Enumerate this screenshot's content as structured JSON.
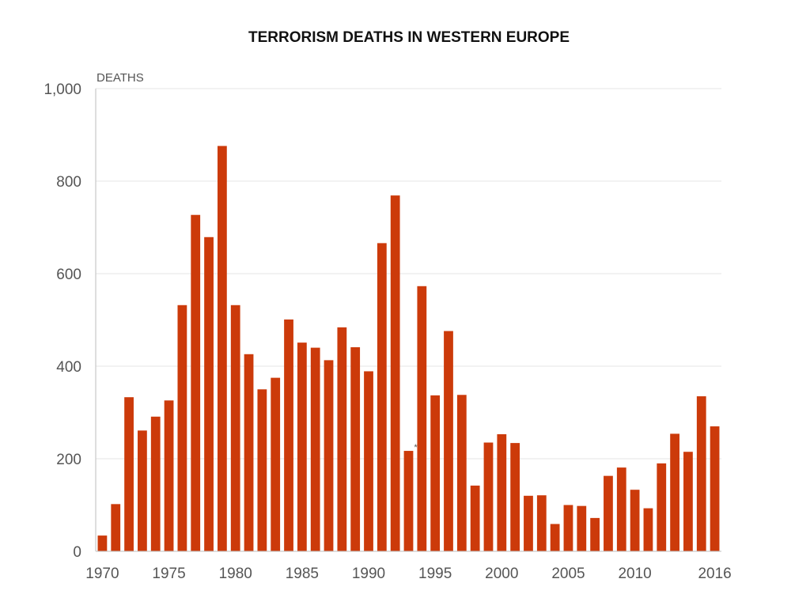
{
  "chart_data": {
    "type": "bar",
    "title": "TERRORISM DEATHS IN WESTERN EUROPE",
    "xlabel": "",
    "ylabel": "DEATHS",
    "ylim": [
      0,
      1000
    ],
    "yticks": [
      0,
      200,
      400,
      600,
      800,
      1000
    ],
    "ytick_labels": [
      "0",
      "200",
      "400",
      "600",
      "800",
      "1,000"
    ],
    "xtick_labels": [
      "1970",
      "1975",
      "1980",
      "1985",
      "1990",
      "1995",
      "2000",
      "2005",
      "2010",
      "2016"
    ],
    "grid": true,
    "bar_color": "#cc3a0a",
    "categories": [
      1970,
      1971,
      1972,
      1973,
      1974,
      1975,
      1976,
      1977,
      1978,
      1979,
      1980,
      1981,
      1982,
      1983,
      1984,
      1985,
      1986,
      1987,
      1988,
      1989,
      1990,
      1991,
      1992,
      1993,
      1994,
      1995,
      1996,
      1997,
      1998,
      1999,
      2000,
      2001,
      2002,
      2003,
      2004,
      2005,
      2006,
      2007,
      2008,
      2009,
      2010,
      2011,
      2012,
      2013,
      2014,
      2015,
      2016
    ],
    "values": [
      34,
      102,
      333,
      261,
      291,
      326,
      532,
      727,
      679,
      876,
      532,
      426,
      350,
      375,
      501,
      451,
      440,
      413,
      484,
      441,
      389,
      666,
      769,
      217,
      573,
      337,
      476,
      338,
      142,
      235,
      253,
      234,
      120,
      121,
      59,
      100,
      98,
      72,
      163,
      181,
      133,
      93,
      190,
      254,
      215,
      335,
      270
    ],
    "annotations": [
      {
        "year": 1993,
        "text": "*"
      }
    ]
  }
}
